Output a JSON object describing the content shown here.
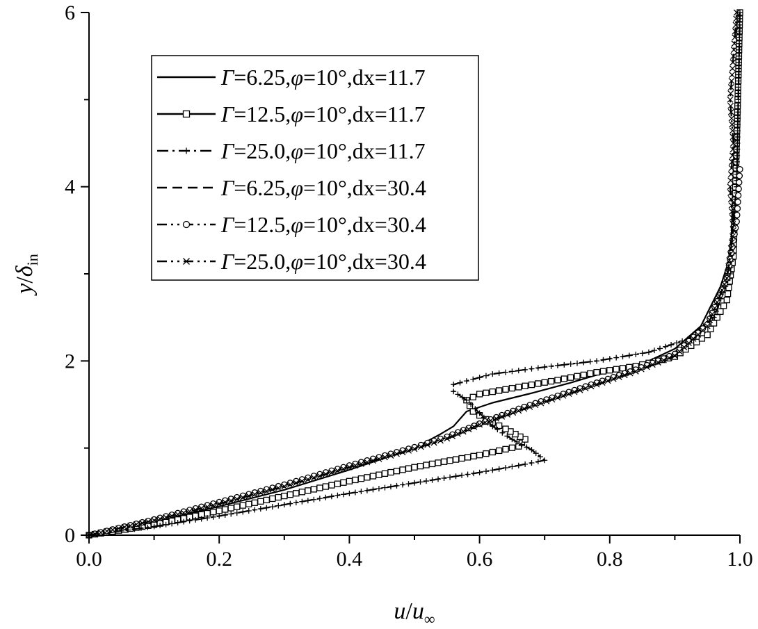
{
  "chart_data": {
    "type": "line",
    "title": "",
    "xlabel": {
      "var": "u",
      "sep": "/",
      "sub_base": "u",
      "sub": "∞"
    },
    "ylabel": {
      "var": "y",
      "sep": "/",
      "sub_base": "δ",
      "sub": "in"
    },
    "xlim": [
      0.0,
      1.0
    ],
    "ylim": [
      0,
      6
    ],
    "xticks": [
      "0.0",
      "0.2",
      "0.4",
      "0.6",
      "0.8",
      "1.0"
    ],
    "yticks": [
      "0",
      "2",
      "4",
      "6"
    ],
    "legend_position": "top-left",
    "series": [
      {
        "name": "Γ=6.25,φ=10°,dx=11.7",
        "name_parts": [
          "Γ",
          "=6.25,",
          "φ",
          "=10°,dx=11.7"
        ],
        "style": "solid",
        "marker": "none",
        "x": [
          0.0,
          0.1,
          0.2,
          0.3,
          0.4,
          0.5,
          0.54,
          0.56,
          0.58,
          0.62,
          0.68,
          0.74,
          0.78,
          0.82,
          0.86,
          0.9,
          0.94,
          0.97,
          0.985,
          0.99,
          0.995,
          1.0
        ],
        "y": [
          0.0,
          0.15,
          0.33,
          0.52,
          0.75,
          1.0,
          1.16,
          1.25,
          1.42,
          1.52,
          1.63,
          1.75,
          1.84,
          1.91,
          2.0,
          2.14,
          2.4,
          2.85,
          3.2,
          3.6,
          4.5,
          6.0
        ]
      },
      {
        "name": "Γ=12.5,φ=10°,dx=11.7",
        "name_parts": [
          "Γ",
          "=12.5,",
          "φ",
          "=10°,dx=11.7"
        ],
        "style": "solid",
        "marker": "square",
        "x": [
          0.0,
          0.1,
          0.2,
          0.3,
          0.4,
          0.5,
          0.6,
          0.66,
          0.67,
          0.64,
          0.61,
          0.59,
          0.58,
          0.6,
          0.66,
          0.72,
          0.78,
          0.84,
          0.9,
          0.95,
          0.98,
          0.99,
          0.995,
          1.0
        ],
        "y": [
          0.0,
          0.12,
          0.28,
          0.45,
          0.62,
          0.78,
          0.92,
          1.02,
          1.1,
          1.22,
          1.33,
          1.42,
          1.55,
          1.62,
          1.7,
          1.78,
          1.87,
          1.94,
          2.05,
          2.3,
          2.7,
          3.2,
          4.5,
          6.0
        ]
      },
      {
        "name": "Γ=25.0,φ=10°,dx=11.7",
        "name_parts": [
          "Γ",
          "=25.0,",
          "φ",
          "=10°,dx=11.7"
        ],
        "style": "dashdot",
        "marker": "plus",
        "x": [
          0.0,
          0.1,
          0.2,
          0.3,
          0.4,
          0.5,
          0.6,
          0.66,
          0.7,
          0.68,
          0.65,
          0.62,
          0.6,
          0.58,
          0.56,
          0.56,
          0.62,
          0.7,
          0.78,
          0.86,
          0.92,
          0.96,
          0.985,
          0.995,
          1.0
        ],
        "y": [
          0.0,
          0.1,
          0.22,
          0.35,
          0.48,
          0.6,
          0.72,
          0.8,
          0.86,
          0.98,
          1.1,
          1.25,
          1.4,
          1.55,
          1.65,
          1.73,
          1.85,
          1.93,
          2.0,
          2.1,
          2.25,
          2.5,
          3.0,
          4.0,
          6.0
        ]
      },
      {
        "name": "Γ=6.25,φ=10°,dx=30.4",
        "name_parts": [
          "Γ",
          "=6.25,",
          "φ",
          "=10°,dx=30.4"
        ],
        "style": "dash",
        "marker": "none",
        "x": [
          0.0,
          0.1,
          0.2,
          0.3,
          0.4,
          0.5,
          0.55,
          0.6,
          0.66,
          0.72,
          0.78,
          0.84,
          0.9,
          0.95,
          0.98,
          0.995,
          1.0
        ],
        "y": [
          0.0,
          0.18,
          0.37,
          0.57,
          0.79,
          1.0,
          1.12,
          1.28,
          1.45,
          1.6,
          1.75,
          1.9,
          2.1,
          2.45,
          2.95,
          4.0,
          6.0
        ]
      },
      {
        "name": "Γ=12.5,φ=10°,dx=30.4",
        "name_parts": [
          "Γ",
          "=12.5,",
          "φ",
          "=10°,dx=30.4"
        ],
        "style": "dashdotdot",
        "marker": "circle",
        "x": [
          0.0,
          0.1,
          0.2,
          0.3,
          0.4,
          0.5,
          0.55,
          0.6,
          0.66,
          0.72,
          0.78,
          0.84,
          0.9,
          0.95,
          0.98,
          0.995,
          1.0
        ],
        "y": [
          0.0,
          0.18,
          0.38,
          0.58,
          0.8,
          1.01,
          1.13,
          1.28,
          1.45,
          1.6,
          1.75,
          1.9,
          2.08,
          2.42,
          2.95,
          3.6,
          4.2
        ]
      },
      {
        "name": "Γ=25.0,φ=10°,dx=30.4",
        "name_parts": [
          "Γ",
          "=25.0,",
          "φ",
          "=10°,dx=30.4"
        ],
        "style": "dashdotdot",
        "marker": "x",
        "x": [
          0.0,
          0.1,
          0.2,
          0.3,
          0.4,
          0.5,
          0.55,
          0.6,
          0.66,
          0.72,
          0.78,
          0.84,
          0.9,
          0.95,
          0.98,
          0.99,
          0.985,
          0.99,
          0.985,
          0.99,
          0.995
        ],
        "y": [
          0.0,
          0.17,
          0.36,
          0.56,
          0.78,
          0.99,
          1.11,
          1.27,
          1.43,
          1.58,
          1.73,
          1.88,
          2.06,
          2.4,
          2.95,
          3.5,
          4.0,
          4.5,
          5.0,
          5.5,
          6.0
        ]
      }
    ]
  }
}
